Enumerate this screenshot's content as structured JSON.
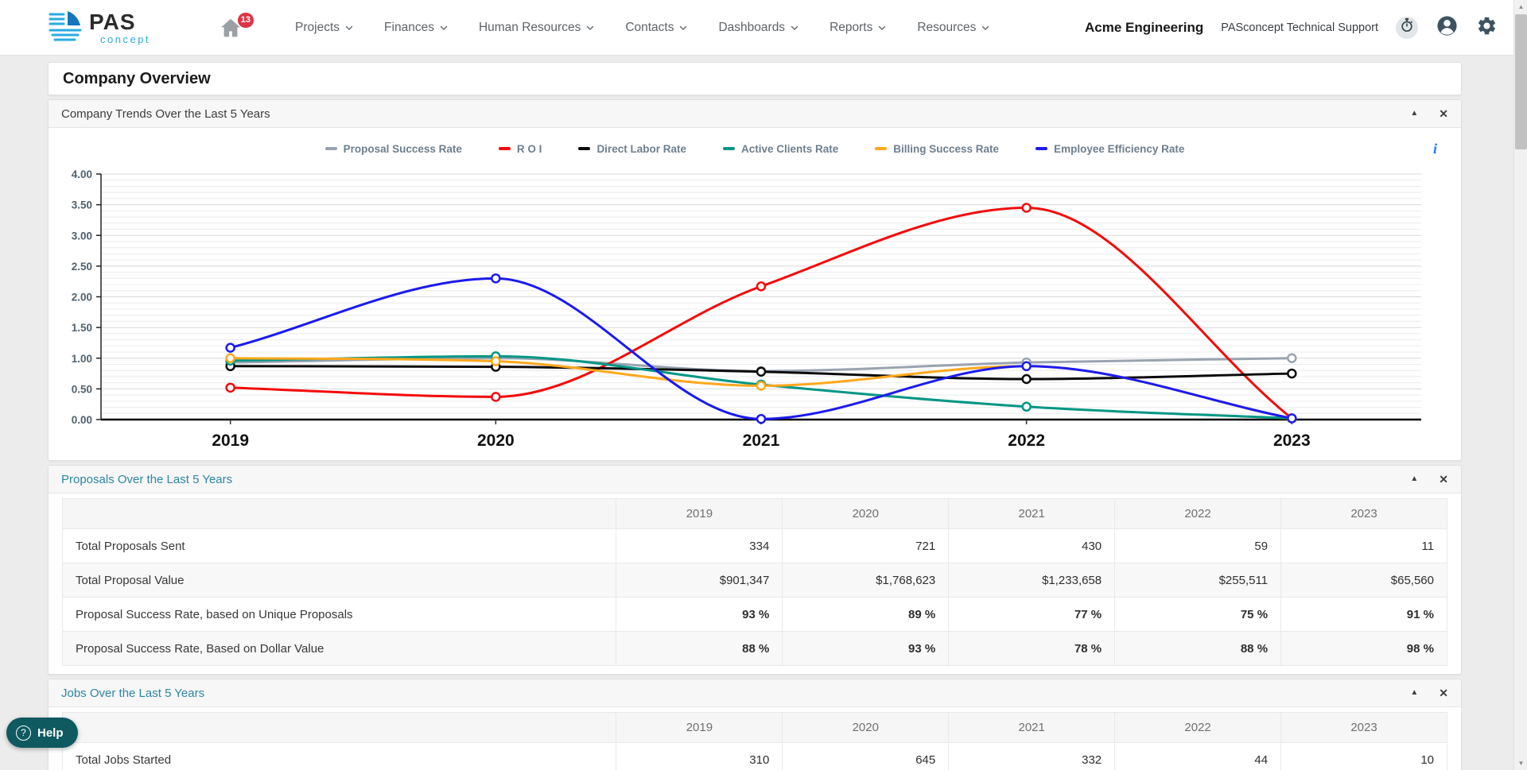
{
  "nav": {
    "logo_line1": "PAS",
    "logo_line2": "concept",
    "home_badge": "13",
    "menus": [
      {
        "label": "Projects"
      },
      {
        "label": "Finances"
      },
      {
        "label": "Human Resources"
      },
      {
        "label": "Contacts"
      },
      {
        "label": "Dashboards"
      },
      {
        "label": "Reports"
      },
      {
        "label": "Resources"
      }
    ],
    "company": "Acme Engineering",
    "support": "PASconcept Technical Support"
  },
  "page": {
    "title": "Company Overview"
  },
  "panels": {
    "trends": {
      "title": "Company Trends Over the Last 5 Years"
    },
    "proposals": {
      "title": "Proposals Over the Last 5 Years"
    },
    "jobs": {
      "title": "Jobs Over the Last 5 Years"
    }
  },
  "icons": {
    "collapse": "▲",
    "close": "✕",
    "info": "i",
    "help_question": "?",
    "scroll_up": "▲",
    "scroll_down": "▼"
  },
  "help": {
    "label": "Help"
  },
  "chart_data": {
    "type": "line",
    "title": "Company Trends Over the Last 5 Years",
    "x": [
      "2019",
      "2020",
      "2021",
      "2022",
      "2023"
    ],
    "ylim": [
      0,
      4
    ],
    "ytick_major": 0.5,
    "ytick_minor": 0.1,
    "grid": true,
    "legend_position": "top",
    "series": [
      {
        "name": "Proposal Success Rate",
        "color": "#99a3b1",
        "values": [
          0.93,
          1.0,
          0.79,
          0.93,
          1.0
        ]
      },
      {
        "name": "R O I",
        "color": "#f40b0b",
        "values": [
          0.52,
          0.37,
          2.17,
          3.45,
          0.02
        ]
      },
      {
        "name": "Direct Labor Rate",
        "color": "#0a0a0a",
        "values": [
          0.87,
          0.86,
          0.78,
          0.66,
          0.75
        ]
      },
      {
        "name": "Active Clients Rate",
        "color": "#009684",
        "values": [
          0.96,
          1.03,
          0.57,
          0.21,
          0.02
        ]
      },
      {
        "name": "Billing Success Rate",
        "color": "#ffa81d",
        "values": [
          1.0,
          0.95,
          0.55,
          0.87,
          0.02
        ]
      },
      {
        "name": "Employee Efficiency Rate",
        "color": "#1b1bef",
        "values": [
          1.17,
          2.3,
          0.01,
          0.87,
          0.02
        ]
      }
    ]
  },
  "proposals_table": {
    "columns": [
      "2019",
      "2020",
      "2021",
      "2022",
      "2023"
    ],
    "rows": [
      {
        "label": "Total Proposals Sent",
        "values": [
          "334",
          "721",
          "430",
          "59",
          "11"
        ],
        "styles": [
          "plain",
          "plain",
          "plain",
          "plain",
          "plain"
        ]
      },
      {
        "label": "Total Proposal Value",
        "values": [
          "$901,347",
          "$1,768,623",
          "$1,233,658",
          "$255,511",
          "$65,560"
        ],
        "styles": [
          "plain",
          "plain",
          "plain",
          "plain",
          "plain"
        ]
      },
      {
        "label": "Proposal Success Rate, based on Unique Proposals",
        "values": [
          "93 %",
          "89 %",
          "77 %",
          "75 %",
          "91 %"
        ],
        "styles": [
          "light",
          "light",
          "dark",
          "dark",
          "light"
        ]
      },
      {
        "label": "Proposal Success Rate, Based on Dollar Value",
        "values": [
          "88 %",
          "93 %",
          "78 %",
          "88 %",
          "98 %"
        ],
        "styles": [
          "light",
          "light",
          "dark",
          "light",
          "light"
        ]
      }
    ]
  },
  "jobs_table": {
    "columns": [
      "2019",
      "2020",
      "2021",
      "2022",
      "2023"
    ],
    "rows": [
      {
        "label": "Total Jobs Started",
        "values": [
          "310",
          "645",
          "332",
          "44",
          "10"
        ],
        "styles": [
          "plain",
          "plain",
          "plain",
          "plain",
          "plain"
        ]
      }
    ]
  }
}
